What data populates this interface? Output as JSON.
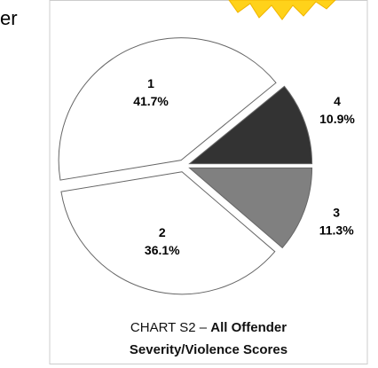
{
  "chart_data": {
    "type": "pie",
    "annotation": "er",
    "title": "CHART S2 –",
    "subtitle": "All Offender Severity/Violence Scores",
    "categories": [
      "1",
      "2",
      "3",
      "4"
    ],
    "values": [
      41.7,
      36.1,
      11.3,
      10.9
    ],
    "value_labels": [
      "41.7%",
      "36.1%",
      "11.3%",
      "10.9%"
    ],
    "colors": [
      "#ffffff",
      "#ffffff",
      "#808080",
      "#333333"
    ]
  }
}
